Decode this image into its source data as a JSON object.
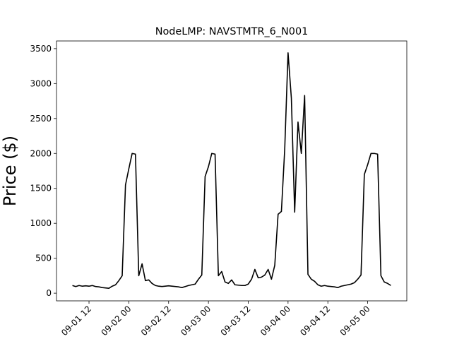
{
  "chart_data": {
    "type": "line",
    "title": "NodeLMP: NAVSTMTR_6_N001",
    "y_label": "Price ($)",
    "color": "#000000",
    "x": [
      7,
      8,
      9,
      10,
      11,
      12,
      13,
      14,
      15,
      16,
      17,
      18,
      19,
      20,
      21,
      22,
      23,
      24,
      25,
      26,
      27,
      28,
      29,
      30,
      31,
      32,
      33,
      34,
      35,
      36,
      37,
      38,
      39,
      40,
      41,
      42,
      43,
      44,
      45,
      46,
      47,
      48,
      49,
      50,
      51,
      52,
      53,
      54,
      55,
      56,
      57,
      58,
      59,
      60,
      61,
      62,
      63,
      64,
      65,
      66,
      67,
      68,
      69,
      70,
      71,
      72,
      73,
      74,
      75,
      76,
      77,
      78,
      79,
      80,
      81,
      82,
      83,
      84,
      85,
      86,
      87,
      88,
      89,
      90,
      91,
      92,
      93,
      94,
      95,
      96,
      97,
      98,
      99,
      100,
      101,
      102,
      103
    ],
    "values": [
      110,
      95,
      110,
      100,
      105,
      100,
      110,
      95,
      90,
      80,
      75,
      70,
      100,
      120,
      180,
      250,
      1550,
      1780,
      2000,
      1990,
      250,
      420,
      180,
      190,
      140,
      110,
      100,
      95,
      100,
      105,
      100,
      95,
      90,
      80,
      95,
      110,
      120,
      130,
      200,
      260,
      1670,
      1810,
      2000,
      1990,
      250,
      310,
      160,
      140,
      190,
      120,
      115,
      110,
      110,
      130,
      200,
      340,
      220,
      230,
      260,
      340,
      200,
      400,
      1130,
      1170,
      2060,
      3440,
      2790,
      1160,
      2450,
      2000,
      2830,
      270,
      200,
      170,
      120,
      100,
      110,
      100,
      95,
      90,
      80,
      100,
      110,
      120,
      130,
      150,
      200,
      260,
      1700,
      1840,
      2000,
      2000,
      1990,
      250,
      160,
      140,
      110
    ],
    "xlim": [
      2.2,
      107.8
    ],
    "ylim": [
      -110,
      3610
    ],
    "xticks": [
      {
        "value": 12,
        "label": "09-01 12"
      },
      {
        "value": 24,
        "label": "09-02 00"
      },
      {
        "value": 36,
        "label": "09-02 12"
      },
      {
        "value": 48,
        "label": "09-03 00"
      },
      {
        "value": 60,
        "label": "09-03 12"
      },
      {
        "value": 72,
        "label": "09-04 00"
      },
      {
        "value": 84,
        "label": "09-04 12"
      },
      {
        "value": 96,
        "label": "09-05 00"
      }
    ],
    "yticks": [
      0,
      500,
      1000,
      1500,
      2000,
      2500,
      3000,
      3500
    ]
  }
}
